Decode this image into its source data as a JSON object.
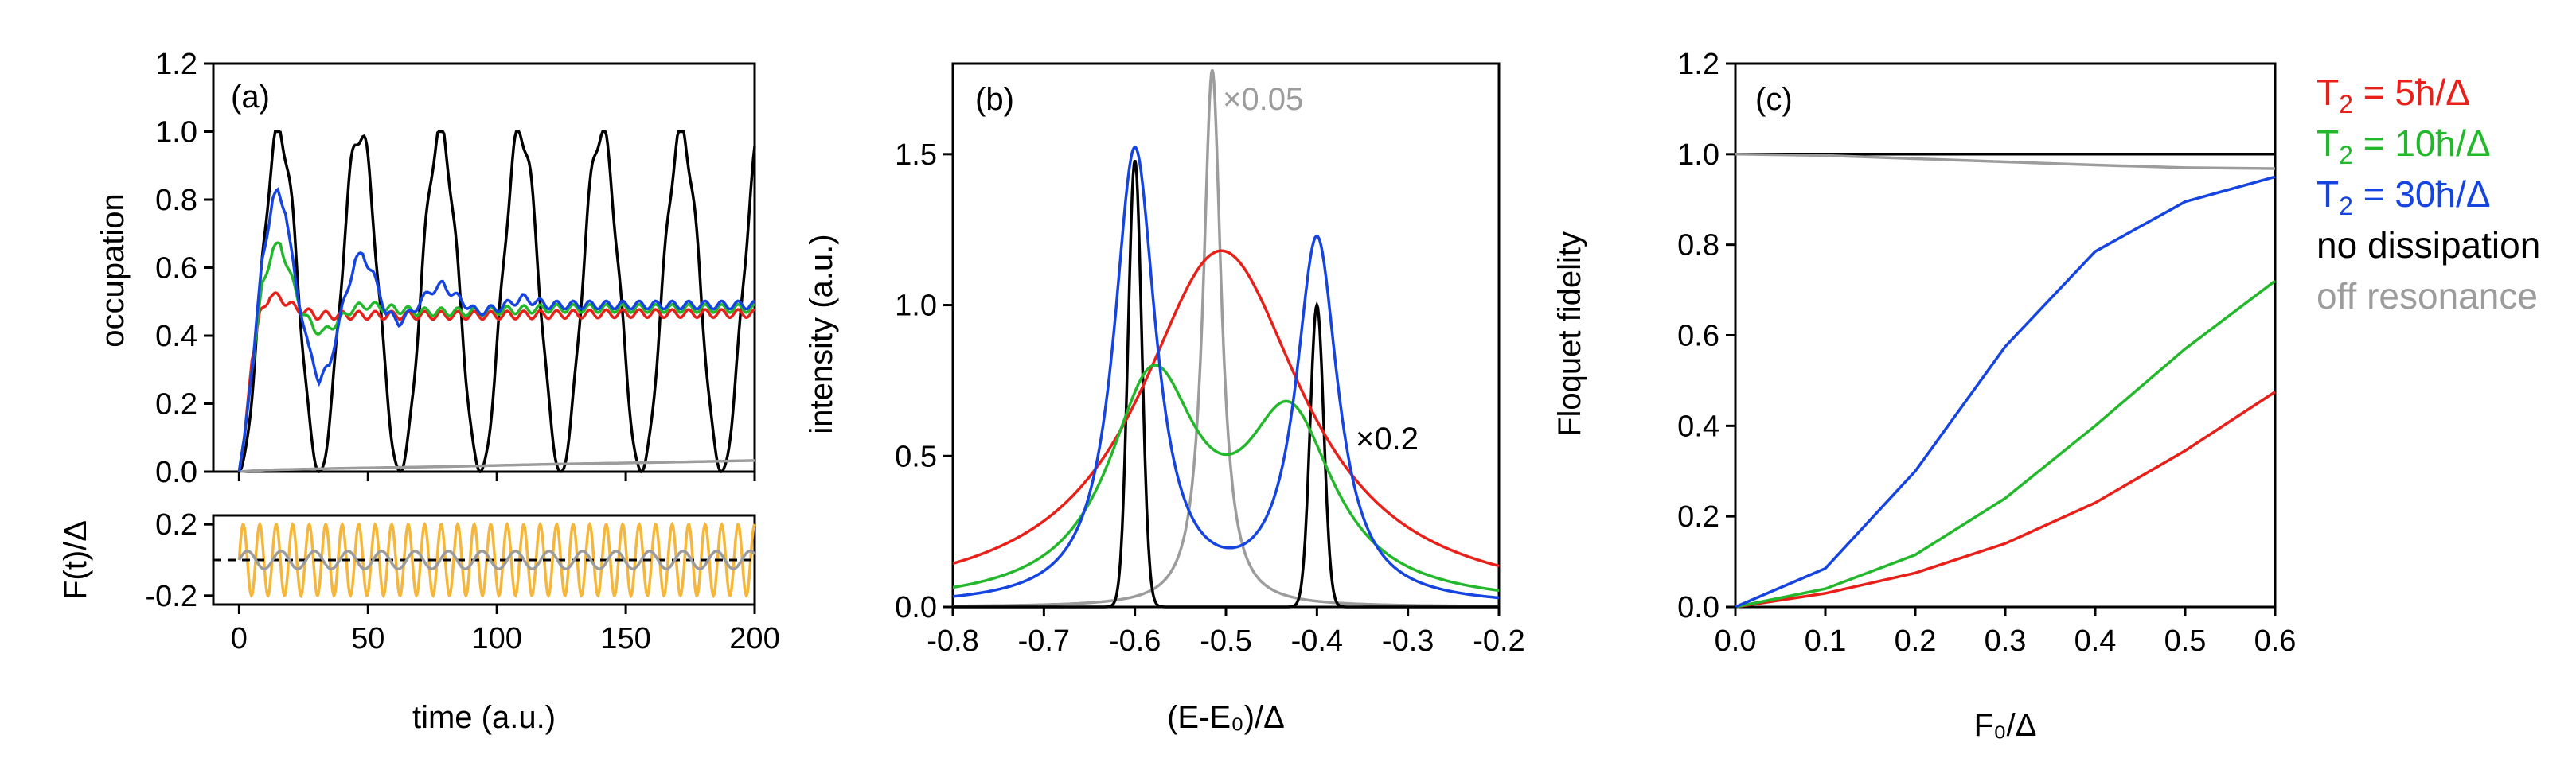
{
  "chart_data": [
    {
      "panel": "(a)",
      "type": "line",
      "title": "",
      "xlabel": "time (a.u.)",
      "ylabel": "occupation",
      "xlim": [
        -10,
        200
      ],
      "ylim": [
        0,
        1.2
      ],
      "xticks": [
        "0",
        "50",
        "100",
        "150",
        "200"
      ],
      "yticks": [
        "0.0",
        "0.2",
        "0.4",
        "0.6",
        "0.8",
        "1.0",
        "1.2"
      ],
      "series": [
        {
          "name": "T2 = 5ħ/Δ",
          "color": "#e8201a",
          "points": [
            [
              0,
              0
            ],
            [
              2,
              0.1
            ],
            [
              5,
              0.33
            ],
            [
              8,
              0.46
            ],
            [
              12,
              0.52
            ],
            [
              16,
              0.51
            ],
            [
              22,
              0.48
            ],
            [
              30,
              0.46
            ],
            [
              40,
              0.46
            ],
            [
              60,
              0.46
            ],
            [
              100,
              0.46
            ],
            [
              150,
              0.465
            ],
            [
              200,
              0.465
            ]
          ]
        },
        {
          "name": "T2 = 10ħ/Δ",
          "color": "#23b82b",
          "points": [
            [
              0,
              0
            ],
            [
              2,
              0.1
            ],
            [
              5,
              0.3
            ],
            [
              9,
              0.55
            ],
            [
              13,
              0.65
            ],
            [
              16,
              0.67
            ],
            [
              19,
              0.6
            ],
            [
              24,
              0.48
            ],
            [
              29,
              0.42
            ],
            [
              33,
              0.41
            ],
            [
              38,
              0.44
            ],
            [
              44,
              0.48
            ],
            [
              50,
              0.49
            ],
            [
              58,
              0.48
            ],
            [
              70,
              0.47
            ],
            [
              90,
              0.47
            ],
            [
              120,
              0.48
            ],
            [
              160,
              0.48
            ],
            [
              200,
              0.48
            ]
          ]
        },
        {
          "name": "T2 = 30ħ/Δ",
          "color": "#1544e0",
          "points": [
            [
              0,
              0
            ],
            [
              2,
              0.1
            ],
            [
              5,
              0.3
            ],
            [
              9,
              0.62
            ],
            [
              13,
              0.8
            ],
            [
              15,
              0.82
            ],
            [
              18,
              0.77
            ],
            [
              22,
              0.55
            ],
            [
              27,
              0.36
            ],
            [
              31,
              0.27
            ],
            [
              35,
              0.31
            ],
            [
              40,
              0.48
            ],
            [
              45,
              0.62
            ],
            [
              48,
              0.64
            ],
            [
              52,
              0.58
            ],
            [
              57,
              0.47
            ],
            [
              62,
              0.44
            ],
            [
              67,
              0.47
            ],
            [
              74,
              0.53
            ],
            [
              79,
              0.55
            ],
            [
              85,
              0.51
            ],
            [
              92,
              0.47
            ],
            [
              100,
              0.48
            ],
            [
              110,
              0.51
            ],
            [
              120,
              0.49
            ],
            [
              140,
              0.49
            ],
            [
              170,
              0.49
            ],
            [
              200,
              0.49
            ]
          ]
        },
        {
          "name": "no dissipation",
          "color": "#000000",
          "periodic": true,
          "period": 31.2,
          "amplitude": 1.0
        },
        {
          "name": "off resonance",
          "color": "#9c9c9c",
          "points": [
            [
              0,
              0
            ],
            [
              10,
              0.005
            ],
            [
              40,
              0.01
            ],
            [
              80,
              0.015
            ],
            [
              120,
              0.022
            ],
            [
              160,
              0.027
            ],
            [
              200,
              0.033
            ]
          ]
        }
      ]
    },
    {
      "panel": "(a) inset",
      "type": "line",
      "xlabel": "time (a.u.)",
      "ylabel": "F(t)/Δ",
      "xlim": [
        -10,
        200
      ],
      "ylim": [
        -0.25,
        0.25
      ],
      "xticks": [
        "0",
        "50",
        "100",
        "150",
        "200"
      ],
      "yticks": [
        "0.2",
        "-0.2"
      ],
      "series": [
        {
          "name": "drive",
          "color": "#f5b73b",
          "amplitude": 0.2,
          "period": 6.4
        },
        {
          "name": "off resonance drive",
          "color": "#9c9c9c",
          "amplitude": 0.05,
          "period": 13.0
        },
        {
          "name": "zero line",
          "color": "#000000",
          "style": "dashed",
          "value": 0
        }
      ]
    },
    {
      "panel": "(b)",
      "type": "line",
      "xlabel": "(E-E₀)/Δ",
      "ylabel": "intensity (a.u.)",
      "xlim": [
        -0.8,
        -0.2
      ],
      "ylim": [
        0,
        1.8
      ],
      "xticks": [
        "-0.8",
        "-0.7",
        "-0.6",
        "-0.5",
        "-0.4",
        "-0.3",
        "-0.2"
      ],
      "yticks": [
        "0.0",
        "0.5",
        "1.0",
        "1.5"
      ],
      "annotations": [
        "×0.05",
        "×0.2"
      ],
      "series": [
        {
          "name": "T2 = 5ħ/Δ",
          "color": "#e8201a",
          "lorentzians": [
            [
              -0.505,
              1.18,
              0.11
            ]
          ],
          "scale": 1.0
        },
        {
          "name": "T2 = 10ħ/Δ",
          "color": "#23b82b",
          "lorentzians": [
            [
              -0.58,
              0.72,
              0.06
            ],
            [
              -0.43,
              0.58,
              0.06
            ]
          ],
          "scale": 1.0
        },
        {
          "name": "T2 = 30ħ/Δ",
          "color": "#1544e0",
          "lorentzians": [
            [
              -0.6,
              1.5,
              0.028
            ],
            [
              -0.4,
              1.2,
              0.028
            ]
          ],
          "scale": 1.0
        },
        {
          "name": "no dissipation ×0.2",
          "color": "#000000",
          "gaussians": [
            [
              -0.6,
              1.48,
              0.0075
            ],
            [
              -0.4,
              1.0,
              0.0075
            ]
          ]
        },
        {
          "name": "off resonance ×0.05",
          "color": "#9c9c9c",
          "lorentzians": [
            [
              -0.515,
              1.78,
              0.012
            ]
          ]
        }
      ]
    },
    {
      "panel": "(c)",
      "type": "line",
      "xlabel": "F₀/Δ",
      "ylabel": "Floquet fidelity",
      "xlim": [
        0,
        0.6
      ],
      "ylim": [
        0,
        1.2
      ],
      "xticks": [
        "0.0",
        "0.1",
        "0.2",
        "0.3",
        "0.4",
        "0.5",
        "0.6"
      ],
      "yticks": [
        "0.0",
        "0.2",
        "0.4",
        "0.6",
        "0.8",
        "1.0",
        "1.2"
      ],
      "x": [
        0,
        0.1,
        0.2,
        0.3,
        0.4,
        0.5,
        0.6
      ],
      "series": [
        {
          "name": "T2 = 5ħ/Δ",
          "color": "#e8201a",
          "values": [
            0,
            0.03,
            0.075,
            0.14,
            0.23,
            0.345,
            0.475
          ]
        },
        {
          "name": "T2 = 10ħ/Δ",
          "color": "#23b82b",
          "values": [
            0,
            0.04,
            0.115,
            0.24,
            0.4,
            0.57,
            0.72
          ]
        },
        {
          "name": "T2 = 30ħ/Δ",
          "color": "#1544e0",
          "values": [
            0,
            0.085,
            0.3,
            0.575,
            0.785,
            0.895,
            0.95
          ]
        },
        {
          "name": "no dissipation",
          "color": "#000000",
          "values": [
            1.0,
            1.0,
            1.0,
            1.0,
            1.0,
            1.0,
            1.0
          ]
        },
        {
          "name": "off resonance",
          "color": "#9c9c9c",
          "values": [
            1.0,
            0.997,
            0.99,
            0.983,
            0.976,
            0.97,
            0.968
          ]
        }
      ]
    }
  ],
  "labels": {
    "panel_a": "(a)",
    "panel_b": "(b)",
    "panel_c": "(c)",
    "ann_b_gray": "×0.05",
    "ann_b_black": "×0.2"
  },
  "legend": [
    {
      "prefix": "T",
      "sub": "2",
      "suffix": " = 5ħ/Δ",
      "color": "#e8201a"
    },
    {
      "prefix": "T",
      "sub": "2",
      "suffix": " = 10ħ/Δ",
      "color": "#23b82b"
    },
    {
      "prefix": "T",
      "sub": "2",
      "suffix": " = 30ħ/Δ",
      "color": "#1544e0"
    },
    {
      "prefix": "no dissipation",
      "sub": "",
      "suffix": "",
      "color": "#000000"
    },
    {
      "prefix": "off resonance",
      "sub": "",
      "suffix": "",
      "color": "#9c9c9c"
    }
  ]
}
